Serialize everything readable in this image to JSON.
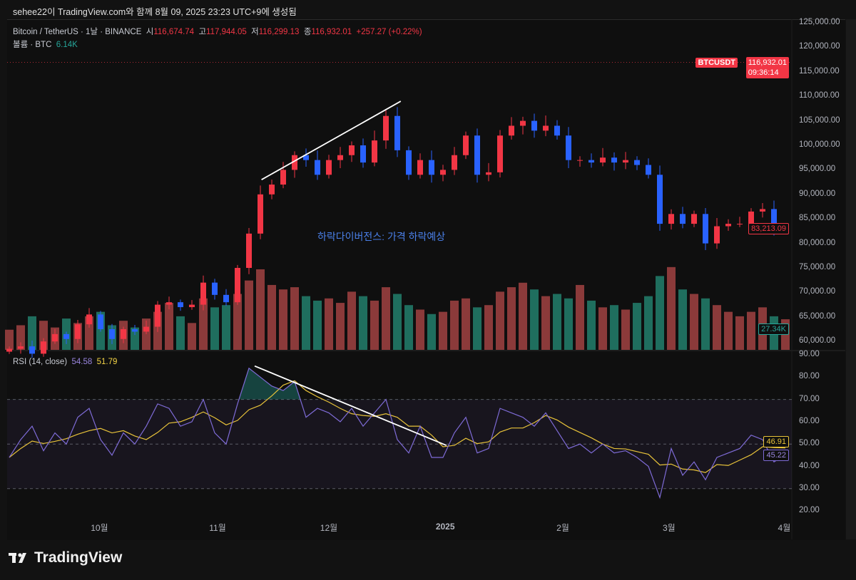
{
  "header": {
    "caption": "sehee22이 TradingView.com와 함께 8월 09, 2025 23:23 UTC+9에 생성됨"
  },
  "legend": {
    "symbol": "Bitcoin / TetherUS · 1날 · BINANCE",
    "open_label": "시",
    "open": "116,674.74",
    "high_label": "고",
    "high": "117,944.05",
    "low_label": "저",
    "low": "116,299.13",
    "close_label": "종",
    "close": "116,932.01",
    "change": "+257.27 (+0.22%)",
    "volume_label": "볼륨 · BTC",
    "volume": "6.14K"
  },
  "rsi_legend": {
    "label": "RSI (14, close)",
    "rsi": "54.58",
    "ma": "51.79"
  },
  "price_tags": {
    "symbol": "BTCUSDT",
    "last": "116,932.01",
    "countdown": "09:36:14",
    "cursor_price": "83,213.09",
    "volume": "27.34K",
    "rsi_ma": "46.91",
    "rsi": "45.22"
  },
  "price_axis": [
    "125,000.00",
    "120,000.00",
    "115,000.00",
    "110,000.00",
    "105,000.00",
    "100,000.00",
    "95,000.00",
    "90,000.00",
    "85,000.00",
    "80,000.00",
    "75,000.00",
    "70,000.00",
    "65,000.00",
    "60,000.00"
  ],
  "rsi_axis": [
    "90.00",
    "80.00",
    "70.00",
    "60.00",
    "50.00",
    "40.00",
    "30.00",
    "20.00"
  ],
  "time_axis": [
    {
      "label": "10월",
      "idx": 7.9
    },
    {
      "label": "11월",
      "idx": 18.25
    },
    {
      "label": "12월",
      "idx": 28
    },
    {
      "label": "2025",
      "idx": 38.2
    },
    {
      "label": "2월",
      "idx": 48.5
    },
    {
      "label": "3월",
      "idx": 57.8
    },
    {
      "label": "4월",
      "idx": 67.9
    }
  ],
  "footer": {
    "brand": "TradingView"
  },
  "colors": {
    "up": "#f23645",
    "down": "#2962ff",
    "vol_up": "#8b3a3a",
    "vol_down": "#1f6e5e",
    "rsi": "#7e6bd6",
    "rsi_ma": "#e8c33a",
    "annotation": "#4a7fe8"
  },
  "chart_data": {
    "type": "candlestick",
    "title": "Bitcoin / TetherUS · 1날 · BINANCE",
    "ylim": [
      60000,
      125000
    ],
    "closes": [
      58500,
      59000,
      57500,
      60000,
      61500,
      60500,
      63500,
      65500,
      62500,
      60500,
      62500,
      62000,
      63000,
      67500,
      68000,
      67000,
      67500,
      72000,
      69500,
      68000,
      75000,
      82000,
      90000,
      92000,
      95000,
      98000,
      97000,
      94000,
      97000,
      98000,
      100000,
      96500,
      101000,
      106000,
      99000,
      94000,
      97000,
      94000,
      95000,
      98000,
      102000,
      94000,
      94500,
      102000,
      104000,
      105000,
      103000,
      104000,
      102000,
      97000,
      97000,
      96500,
      97500,
      96500,
      97000,
      96000,
      94000,
      84000,
      86000,
      84000,
      86000,
      80000,
      83500,
      84000,
      84000,
      86500,
      87000,
      82500,
      83213
    ],
    "volume_k": [
      18,
      22,
      30,
      26,
      20,
      28,
      24,
      30,
      34,
      22,
      26,
      20,
      28,
      34,
      42,
      30,
      24,
      46,
      38,
      40,
      50,
      62,
      72,
      58,
      54,
      56,
      48,
      44,
      46,
      42,
      52,
      48,
      44,
      56,
      50,
      40,
      36,
      32,
      34,
      44,
      46,
      38,
      40,
      52,
      56,
      60,
      54,
      48,
      50,
      46,
      58,
      44,
      38,
      40,
      36,
      42,
      48,
      66,
      74,
      54,
      50,
      46,
      40,
      34,
      30,
      34,
      38,
      30,
      27.34
    ],
    "rsi": {
      "period": 14,
      "ylim": [
        20,
        90
      ],
      "levels": [
        70,
        50,
        30
      ],
      "values": [
        44,
        52,
        58,
        47,
        55,
        50,
        62,
        66,
        52,
        45,
        55,
        50,
        58,
        68,
        66,
        58,
        60,
        70,
        55,
        50,
        68,
        84,
        80,
        76,
        74,
        78,
        62,
        66,
        64,
        60,
        66,
        58,
        64,
        70,
        52,
        46,
        58,
        44,
        44,
        55,
        62,
        46,
        48,
        66,
        64,
        62,
        58,
        64,
        56,
        48,
        50,
        46,
        50,
        46,
        47,
        44,
        40,
        26,
        48,
        36,
        42,
        34,
        44,
        46,
        48,
        54,
        52,
        42,
        45.22
      ]
    },
    "annotations": {
      "text": "하락다이버전스: 가격 하락예상",
      "text_idx": 29,
      "text_price": 80000,
      "price_trendline": [
        [
          22.1,
          93000
        ],
        [
          34.3,
          109000
        ]
      ],
      "rsi_trendline": [
        [
          21.5,
          85
        ],
        [
          38.3,
          49.4
        ]
      ]
    }
  }
}
